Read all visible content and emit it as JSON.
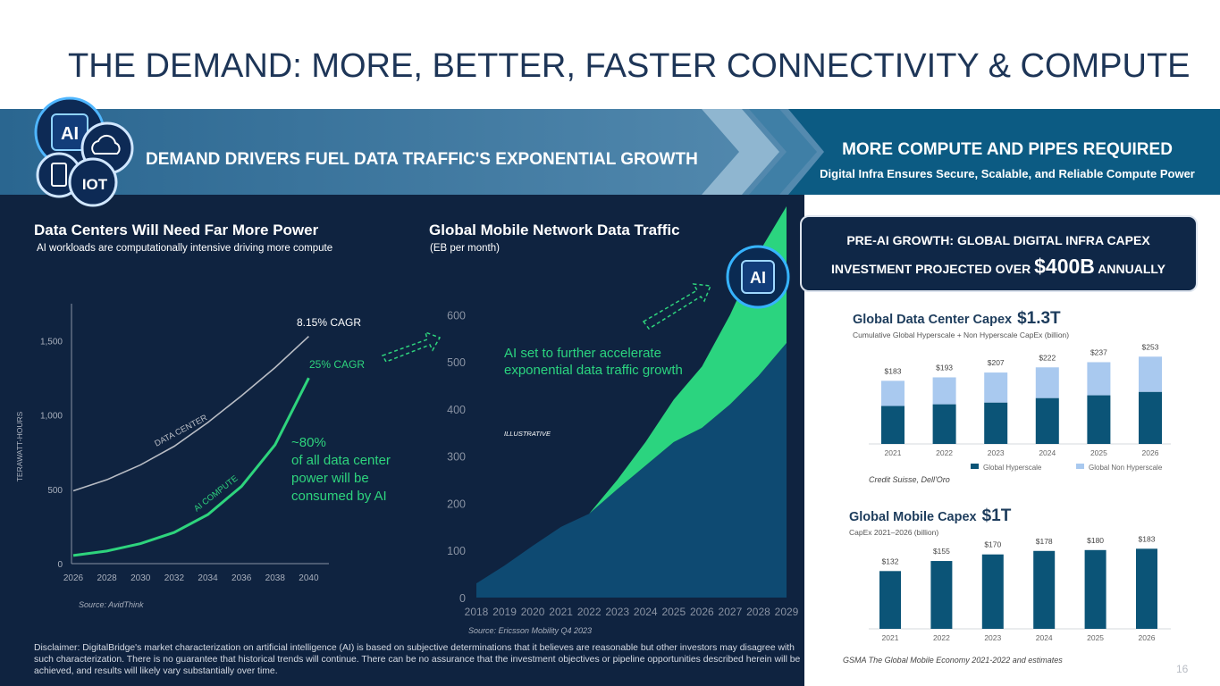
{
  "title": "THE DEMAND: MORE, BETTER, FASTER CONNECTIVITY & COMPUTE",
  "banner": {
    "left": "DEMAND DRIVERS FUEL DATA TRAFFIC'S EXPONENTIAL GROWTH",
    "right_title": "MORE COMPUTE AND PIPES REQUIRED",
    "right_subtitle": "Digital Infra Ensures Secure, Scalable, and Reliable Compute Power",
    "icons": [
      "AI",
      "IOT"
    ]
  },
  "chip_label": "AI",
  "callout": {
    "line_1": "PRE-AI GROWTH: GLOBAL DIGITAL INFRA CAPEX",
    "line_2": "INVESTMENT PROJECTED OVER",
    "highlight": "$400B",
    "line_3": "ANNUALLY"
  },
  "disclaimer": "Disclaimer: DigitalBridge's market characterization on artificial intelligence (AI) is based on subjective determinations that it believes are reasonable but other investors may disagree with such characterization. There is no guarantee that historical trends will continue. There can be no assurance that the investment objectives or pipeline opportunities described herein will be achieved, and results will likely vary substantially over time.",
  "page_number": "16",
  "chart_data": [
    {
      "type": "line",
      "title": "Data Centers Will Need Far More Power",
      "subtitle": "AI workloads are computationally intensive driving more compute",
      "ylabel": "TERAWATT-HOURS",
      "x": [
        2026,
        2028,
        2030,
        2032,
        2034,
        2036,
        2038,
        2040
      ],
      "xlim": [
        2026,
        2041.2
      ],
      "xticks": [
        2026,
        2028,
        2030,
        2032,
        2034,
        2036,
        2038,
        2040
      ],
      "ylim": [
        0,
        1750
      ],
      "yticks": [
        0,
        500,
        {
          "value": 1000,
          "label": "1,000"
        },
        {
          "value": 1500,
          "label": "1,500"
        }
      ],
      "series": [
        {
          "name": "DATA CENTER",
          "color": "#b8bcc4",
          "values": [
            490,
            565,
            665,
            790,
            950,
            1130,
            1320,
            1530
          ]
        },
        {
          "name": "AI COMPUTE",
          "color": "#2ed47d",
          "values": [
            55,
            85,
            135,
            210,
            330,
            520,
            800,
            1250
          ]
        }
      ],
      "annotations": [
        "8.15% CAGR",
        "25% CAGR",
        "~80%\nof all data center\npower will be\nconsumed by AI"
      ],
      "source": "Source: AvidThink"
    },
    {
      "type": "area",
      "title": "Global Mobile Network Data Traffic",
      "subtitle": "(EB per month)",
      "x": [
        2018,
        2019,
        2020,
        2021,
        2022,
        2023,
        2024,
        2025,
        2026,
        2027,
        2028,
        2029
      ],
      "xlim": [
        2018,
        2029
      ],
      "xticks": [
        2018,
        2019,
        2020,
        2021,
        2022,
        2023,
        2024,
        2025,
        2026,
        2027,
        2028,
        2029
      ],
      "ylim": [
        0,
        830
      ],
      "yticks": [
        0,
        100,
        200,
        300,
        400,
        500,
        600
      ],
      "series": [
        {
          "color": "#0e4a72",
          "values": [
            30,
            68,
            110,
            150,
            178,
            230,
            280,
            330,
            360,
            410,
            470,
            540
          ]
        },
        {
          "color": "#2bd47f",
          "values": [
            0,
            0,
            0,
            0,
            0,
            20,
            50,
            90,
            130,
            190,
            260,
            290
          ]
        }
      ],
      "annotations": [
        "AI set to further accelerate exponential data traffic growth",
        "ILLUSTRATIVE"
      ],
      "source": "Source: Ericsson Mobility Q4 2023"
    },
    {
      "type": "bar",
      "title": "Global Data Center Capex",
      "highlight": "$1.3T",
      "subtitle": "Cumulative Global Hyperscale + Non Hyperscale CapEx (billion)",
      "categories": [
        "2021",
        "2022",
        "2023",
        "2024",
        "2025",
        "2026"
      ],
      "ylim": [
        0,
        290
      ],
      "series": [
        {
          "name": "Global Hyperscale",
          "color": "#0b5477",
          "values": [
            110,
            115,
            120,
            133,
            141,
            151
          ]
        },
        {
          "name": "Global Non Hyperscale",
          "color": "#a9c9ef",
          "values": [
            73,
            78,
            87,
            89,
            96,
            102
          ]
        }
      ],
      "totals": [
        183,
        193,
        207,
        222,
        237,
        253
      ],
      "total_labels": [
        "$183",
        "$193",
        "$207",
        "$222",
        "$237",
        "$253"
      ],
      "source": "Credit Suisse, Dell'Oro"
    },
    {
      "type": "bar",
      "title": "Global Mobile Capex",
      "highlight": "$1T",
      "subtitle": "CapEx 2021–2026 (billion)",
      "categories": [
        "2021",
        "2022",
        "2023",
        "2024",
        "2025",
        "2026"
      ],
      "ylim": [
        0,
        200
      ],
      "color": "#0b5477",
      "values": [
        132,
        155,
        170,
        178,
        180,
        183
      ],
      "value_labels": [
        "$132",
        "$155",
        "$170",
        "$178",
        "$180",
        "$183"
      ],
      "source": "GSMA The Global Mobile Economy 2021-2022 and estimates"
    }
  ]
}
